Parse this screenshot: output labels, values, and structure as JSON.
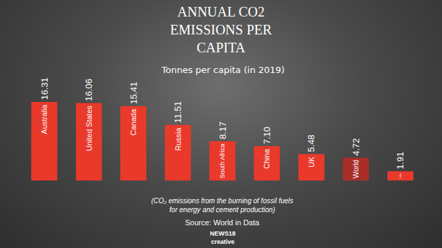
{
  "chart_data": {
    "type": "bar",
    "title": "ANNUAL CO2 EMISSIONS PER CAPITA",
    "subtitle": "Tonnes per capita (in 2019)",
    "categories": [
      "Australia",
      "United States",
      "Canada",
      "Russia",
      "South Africa",
      "China",
      "UK",
      "World",
      "India"
    ],
    "values": [
      16.31,
      16.06,
      15.41,
      11.51,
      8.17,
      7.1,
      5.48,
      4.72,
      1.91
    ],
    "value_labels": [
      "16.31",
      "16.06",
      "15.41",
      "11.51",
      "8.17",
      "7.10",
      "5.48",
      "4.72",
      "1.91"
    ],
    "colors": [
      "#e8392b",
      "#e8392b",
      "#e8392b",
      "#e8392b",
      "#e8392b",
      "#e8392b",
      "#e8392b",
      "#a82e2a",
      "#e8392b"
    ],
    "ylim": [
      0,
      16.31
    ],
    "data_labels": true,
    "tick_labels": false,
    "grid": false,
    "note": "(CO₂ emissions from the burning of fossil fuels for energy and cement production)",
    "source": "Source: World in Data",
    "logo": "NEWS18 creative"
  }
}
